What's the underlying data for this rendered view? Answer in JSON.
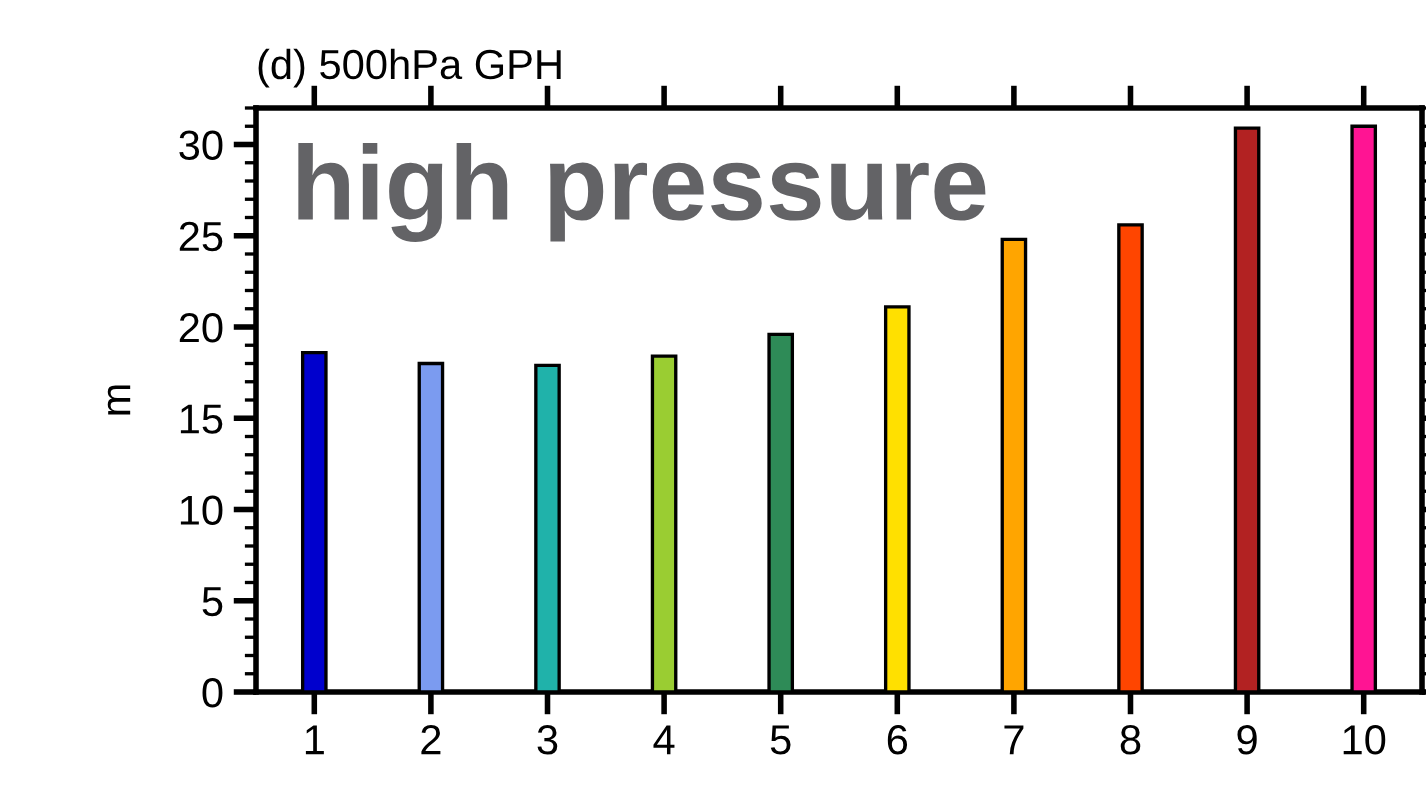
{
  "chart_data": {
    "type": "bar",
    "title": "(d) 500hPa GPH",
    "ylabel": "m",
    "categories": [
      "1",
      "2",
      "3",
      "4",
      "5",
      "6",
      "7",
      "8",
      "9",
      "10"
    ],
    "values": [
      18.6,
      18.0,
      17.9,
      18.4,
      19.6,
      21.1,
      24.8,
      25.6,
      30.9,
      31.0
    ],
    "colors": [
      "#0000cd",
      "#7b9bf0",
      "#20b2aa",
      "#9acd32",
      "#2e8b57",
      "#ffe000",
      "#ffa500",
      "#ff4500",
      "#b22222",
      "#ff1493"
    ],
    "ylim": [
      0,
      32
    ],
    "yticks": [
      0,
      5,
      10,
      15,
      20,
      25,
      30
    ],
    "annotations": [
      "high pressure"
    ],
    "grid": false
  }
}
